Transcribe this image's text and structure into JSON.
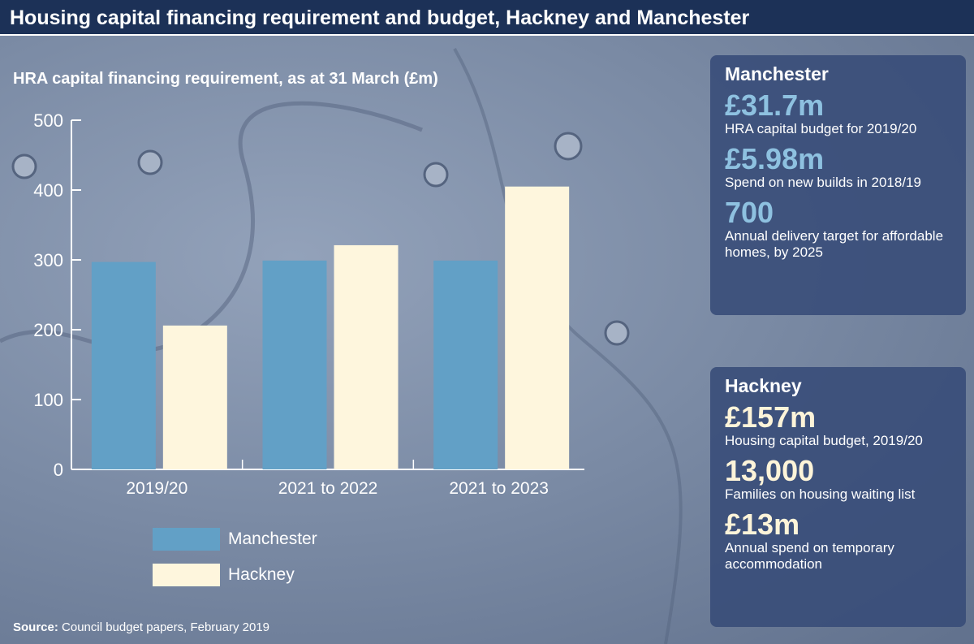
{
  "title": "Housing capital financing requirement and budget, Hackney and Manchester",
  "chart_data": {
    "type": "bar",
    "title": "HRA capital financing requirement, as at 31 March (£m)",
    "categories": [
      "2019/20",
      "2021 to 2022",
      "2021 to 2023"
    ],
    "series": [
      {
        "name": "Manchester",
        "values": [
          297,
          299,
          299
        ],
        "color": "#62a0c6"
      },
      {
        "name": "Hackney",
        "values": [
          206,
          321,
          405
        ],
        "color": "#fef6dd"
      }
    ],
    "yticks": [
      "0",
      "100",
      "200",
      "300",
      "400",
      "500"
    ],
    "ylim": [
      0,
      500
    ],
    "xlabel": "",
    "ylabel": "",
    "legend": "bottom-left",
    "grid": false
  },
  "source_label": "Source:",
  "source_text": " Council budget papers, February 2019",
  "manchester": {
    "heading": "Manchester",
    "stats": [
      {
        "value": "£31.7m",
        "label": "HRA capital budget for 2019/20"
      },
      {
        "value": "£5.98m",
        "label": "Spend on new builds in 2018/19"
      },
      {
        "value": "700",
        "label": "Annual delivery target for affordable homes, by 2025"
      }
    ]
  },
  "hackney": {
    "heading": "Hackney",
    "stats": [
      {
        "value": "£157m",
        "label": "Housing capital budget, 2019/20"
      },
      {
        "value": "13,000",
        "label": "Families on housing waiting list"
      },
      {
        "value": "£13m",
        "label": "Annual spend on temporary accommodation"
      }
    ]
  }
}
